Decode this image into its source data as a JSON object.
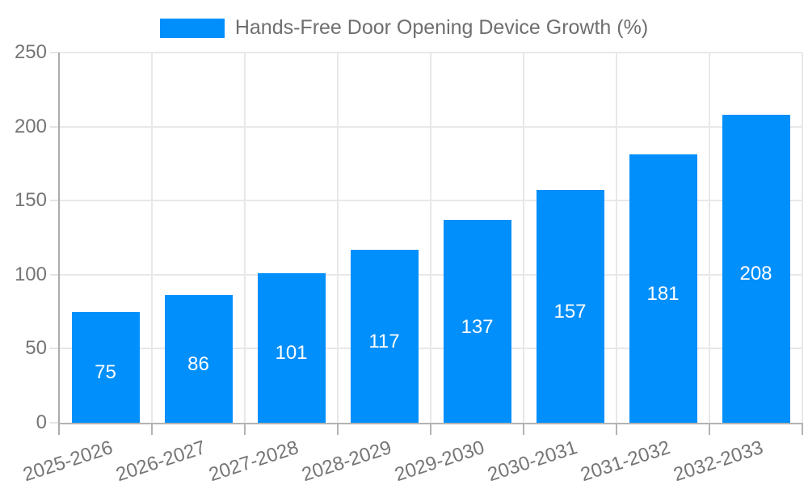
{
  "legend": {
    "position": "top"
  },
  "chart_data": {
    "type": "bar",
    "title": "Hands-Free Door Opening Device Growth (%)",
    "categories": [
      "2025-2026",
      "2026-2027",
      "2027-2028",
      "2028-2029",
      "2029-2030",
      "2030-2031",
      "2031-2032",
      "2032-2033"
    ],
    "series": [
      {
        "name": "Hands-Free Door Opening Device Growth (%)",
        "values": [
          75,
          86,
          101,
          117,
          137,
          157,
          181,
          208
        ]
      }
    ],
    "xlabel": "",
    "ylabel": "",
    "ylim": [
      0,
      250
    ],
    "yticks": [
      0,
      50,
      100,
      150,
      200,
      250
    ],
    "grid": true,
    "legend_position": "top",
    "data_labels_inside": true,
    "colors": {
      "bar": "#008FFB",
      "value_label": "#FFFFFF",
      "axis_text": "#757575",
      "legend_text": "#6F6F6F",
      "grid_line": "#E8E8E8",
      "axis_line": "#ABABAB"
    }
  }
}
